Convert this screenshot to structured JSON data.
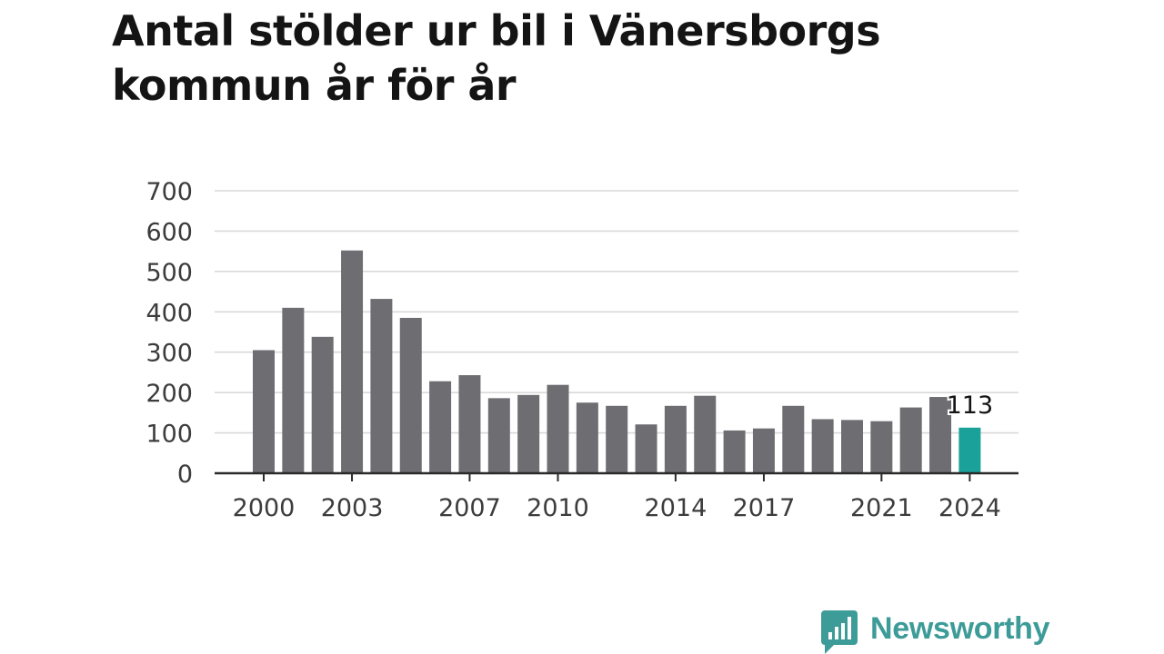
{
  "title": "Antal stölder ur bil i Vänersborgs kommun år för år",
  "brand": {
    "name": "Newsworthy",
    "color": "#3d9b98",
    "icon": "bar-chart-speech-bubble-icon"
  },
  "chart_data": {
    "type": "bar",
    "title": "Antal stölder ur bil i Vänersborgs kommun år för år",
    "xlabel": "",
    "ylabel": "",
    "categories": [
      "2000",
      "2001",
      "2002",
      "2003",
      "2004",
      "2005",
      "2006",
      "2007",
      "2008",
      "2009",
      "2010",
      "2011",
      "2012",
      "2013",
      "2014",
      "2015",
      "2016",
      "2017",
      "2018",
      "2019",
      "2020",
      "2021",
      "2022",
      "2023",
      "2024"
    ],
    "values": [
      305,
      410,
      338,
      552,
      432,
      385,
      228,
      243,
      186,
      194,
      219,
      175,
      167,
      121,
      167,
      192,
      106,
      111,
      167,
      134,
      132,
      129,
      163,
      189,
      113
    ],
    "x_tick_labels": [
      "2000",
      "2003",
      "2007",
      "2010",
      "2014",
      "2017",
      "2021",
      "2024"
    ],
    "y_ticks": [
      0,
      100,
      200,
      300,
      400,
      500,
      600,
      700
    ],
    "ylim": [
      0,
      700
    ],
    "grid": true,
    "bar_color": "#6e6d72",
    "highlight_color": "#19a19a",
    "highlight_category": "2024",
    "data_labels": [
      {
        "category": "2024",
        "text": "113"
      }
    ]
  }
}
